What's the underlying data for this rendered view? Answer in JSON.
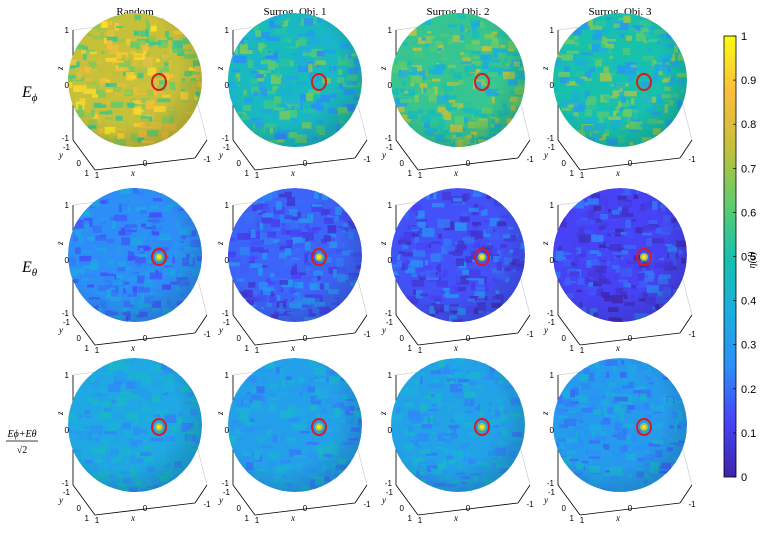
{
  "chart_data": {
    "type": "heatmap",
    "title": "",
    "column_titles": [
      "Random",
      "Surrog. Obj. 1",
      "Surrog. Obj. 2",
      "Surrog. Obj. 3"
    ],
    "row_labels": [
      {
        "main": "E",
        "sub": "ϕ"
      },
      {
        "main": "E",
        "sub": "θ"
      },
      {
        "numerator": "Eϕ+Eθ",
        "denominator": "√2"
      }
    ],
    "axes": {
      "x_label": "x",
      "y_label": "y",
      "z_label": "z",
      "x_ticks": [
        "1",
        "0",
        "-1"
      ],
      "y_ticks": [
        "-1",
        "0",
        "1"
      ],
      "z_ticks": [
        "1",
        "0",
        "-1"
      ]
    },
    "panel_mean_values": [
      [
        0.75,
        0.45,
        0.55,
        0.5
      ],
      [
        0.25,
        0.18,
        0.15,
        0.12
      ],
      [
        0.35,
        0.32,
        0.33,
        0.3
      ]
    ],
    "highlight_marker": "red-circle",
    "colorbar": {
      "label": "η(d)",
      "range": [
        0,
        1
      ],
      "ticks": [
        "0",
        "0.1",
        "0.2",
        "0.3",
        "0.4",
        "0.5",
        "0.6",
        "0.7",
        "0.8",
        "0.9",
        "1"
      ],
      "colormap": "parula",
      "colors": [
        "#3e26a8",
        "#4743f8",
        "#2d8ef7",
        "#1caede",
        "#17c1ac",
        "#64cc69",
        "#c6c03a",
        "#fbbd3d",
        "#f9fb14"
      ]
    }
  }
}
